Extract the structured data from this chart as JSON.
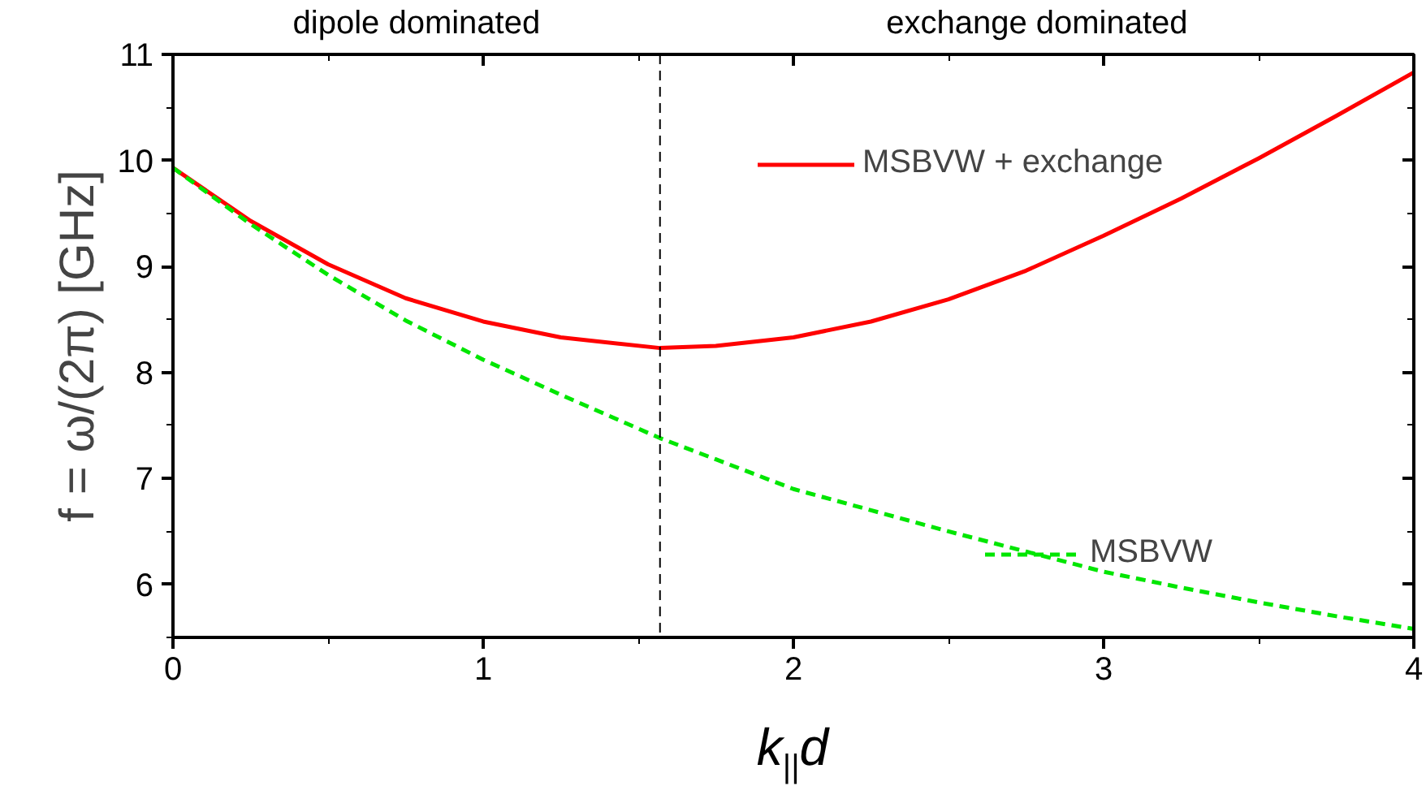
{
  "chart_data": {
    "type": "line",
    "xlabel": "k$_{||}$d",
    "ylabel": "f = ω/(2π) [GHz]",
    "x": [
      0,
      0.25,
      0.5,
      0.75,
      1.0,
      1.25,
      1.57,
      1.75,
      2.0,
      2.25,
      2.5,
      2.75,
      3.0,
      3.25,
      3.5,
      3.75,
      4.0
    ],
    "series": [
      {
        "name": "MSBVW + exchange",
        "color": "#ff0000",
        "line_style": "solid",
        "values": [
          9.93,
          9.43,
          9.02,
          8.7,
          8.48,
          8.33,
          8.23,
          8.25,
          8.33,
          8.48,
          8.69,
          8.96,
          9.29,
          9.64,
          10.02,
          10.42,
          10.83
        ]
      },
      {
        "name": "MSBVW",
        "color": "#00e600",
        "line_style": "dashed",
        "values": [
          9.93,
          9.4,
          8.92,
          8.49,
          8.12,
          7.79,
          7.38,
          7.18,
          6.9,
          6.7,
          6.5,
          6.31,
          6.12,
          5.97,
          5.83,
          5.7,
          5.58
        ]
      }
    ],
    "xlim": [
      0,
      4
    ],
    "ylim": [
      5.5,
      11
    ],
    "xticks": [
      0,
      1,
      2,
      3,
      4
    ],
    "yticks": [
      6,
      7,
      8,
      9,
      10,
      11
    ],
    "ref_lines": [
      {
        "axis": "x",
        "value": 1.57,
        "color": "#000000",
        "line_style": "dashed"
      }
    ],
    "annotations": [
      "dipole dominated",
      "exchange dominated"
    ],
    "legend": "right",
    "grid": false,
    "marker": "none"
  }
}
